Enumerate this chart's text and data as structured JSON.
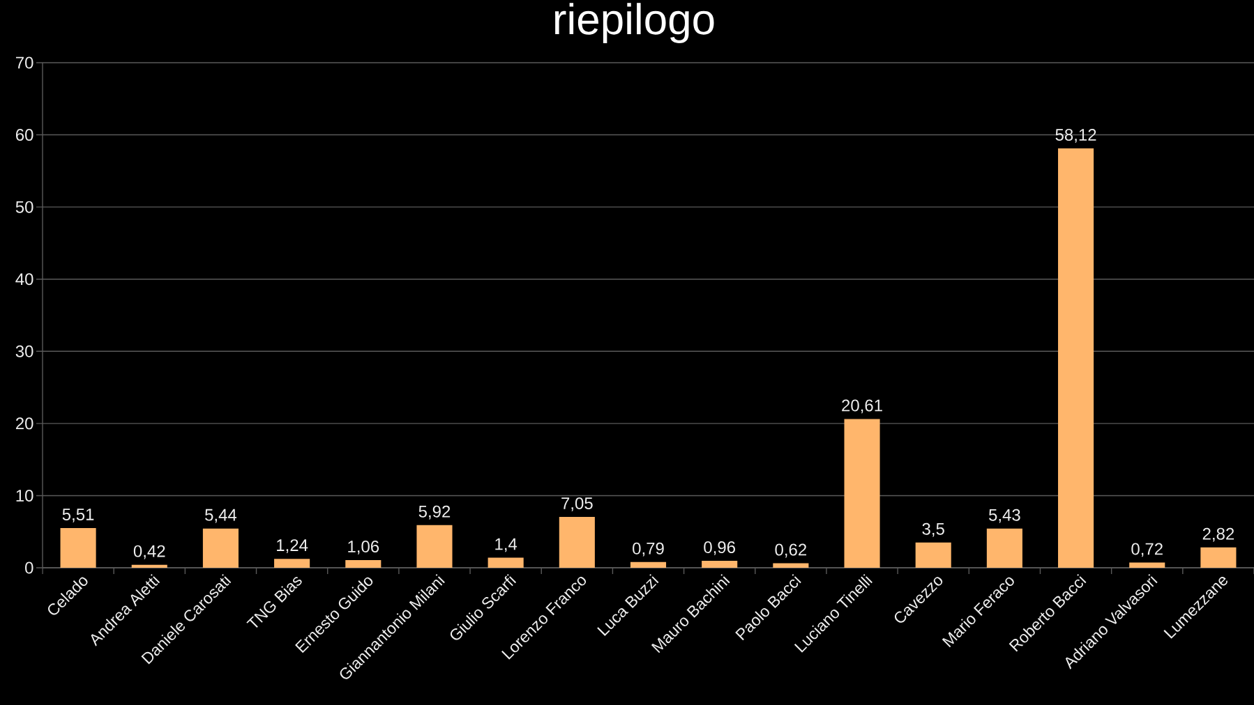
{
  "chart_data": {
    "type": "bar",
    "title": "riepilogo",
    "categories": [
      "Celado",
      "Andrea Aletti",
      "Daniele Carosati",
      "TNG Bias",
      "Ernesto Guido",
      "Giannantonio Milani",
      "Giulio Scarfi",
      "Lorenzo Franco",
      "Luca Buzzi",
      "Mauro Bachini",
      "Paolo Bacci",
      "Luciano Tinelli",
      "Cavezzo",
      "Mario Feraco",
      "Roberto Bacci",
      "Adriano Valvasori",
      "Lumezzane"
    ],
    "values": [
      5.51,
      0.42,
      5.44,
      1.24,
      1.06,
      5.92,
      1.4,
      7.05,
      0.79,
      0.96,
      0.62,
      20.61,
      3.5,
      5.43,
      58.12,
      0.72,
      2.82
    ],
    "value_labels": [
      "5,51",
      "0,42",
      "5,44",
      "1,24",
      "1,06",
      "5,92",
      "1,4",
      "7,05",
      "0,79",
      "0,96",
      "0,62",
      "20,61",
      "3,5",
      "5,43",
      "58,12",
      "0,72",
      "2,82"
    ],
    "color": "#ffb66c",
    "ylim": [
      0,
      70
    ],
    "yticks": [
      0,
      10,
      20,
      30,
      40,
      50,
      60,
      70
    ],
    "grid": "y"
  }
}
